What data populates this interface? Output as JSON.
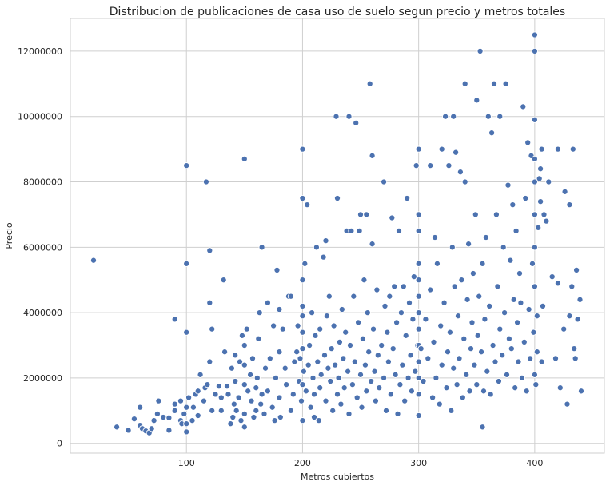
{
  "chart_data": {
    "type": "scatter",
    "title": "Distribucion de publicaciones de casa uso de suelo segun precio y metros totales",
    "xlabel": "Metros cubiertos",
    "ylabel": "Precio",
    "xlim": [
      0,
      460
    ],
    "ylim": [
      -300000,
      13000000
    ],
    "xticks": [
      100,
      200,
      300,
      400
    ],
    "yticks": [
      0,
      2000000,
      4000000,
      6000000,
      8000000,
      10000000,
      12000000
    ],
    "grid": true,
    "legend": "none",
    "marker_color": "#4c72b0",
    "points": [
      [
        20,
        5600000
      ],
      [
        40,
        500000
      ],
      [
        50,
        400000
      ],
      [
        55,
        750000
      ],
      [
        60,
        1100000
      ],
      [
        60,
        550000
      ],
      [
        62,
        450000
      ],
      [
        65,
        380000
      ],
      [
        68,
        320000
      ],
      [
        70,
        450000
      ],
      [
        72,
        700000
      ],
      [
        75,
        900000
      ],
      [
        76,
        1300000
      ],
      [
        80,
        800000
      ],
      [
        85,
        780000
      ],
      [
        85,
        400000
      ],
      [
        90,
        1000000
      ],
      [
        90,
        1200000
      ],
      [
        90,
        3800000
      ],
      [
        95,
        700000
      ],
      [
        95,
        1300000
      ],
      [
        96,
        600000
      ],
      [
        98,
        900000
      ],
      [
        100,
        350000
      ],
      [
        100,
        600000
      ],
      [
        100,
        1100000
      ],
      [
        100,
        3400000
      ],
      [
        100,
        5500000
      ],
      [
        100,
        8500000
      ],
      [
        102,
        1400000
      ],
      [
        105,
        700000
      ],
      [
        106,
        1100000
      ],
      [
        108,
        1500000
      ],
      [
        110,
        1600000
      ],
      [
        110,
        850000
      ],
      [
        112,
        2100000
      ],
      [
        115,
        1300000
      ],
      [
        116,
        1700000
      ],
      [
        117,
        8000000
      ],
      [
        118,
        1800000
      ],
      [
        120,
        2500000
      ],
      [
        120,
        4300000
      ],
      [
        120,
        5900000
      ],
      [
        122,
        3500000
      ],
      [
        122,
        1000000
      ],
      [
        125,
        1500000
      ],
      [
        128,
        1750000
      ],
      [
        130,
        1400000
      ],
      [
        130,
        1000000
      ],
      [
        132,
        5000000
      ],
      [
        133,
        2800000
      ],
      [
        135,
        1750000
      ],
      [
        136,
        1500000
      ],
      [
        138,
        600000
      ],
      [
        139,
        2300000
      ],
      [
        140,
        800000
      ],
      [
        141,
        1200000
      ],
      [
        142,
        1900000
      ],
      [
        142,
        2700000
      ],
      [
        143,
        1000000
      ],
      [
        145,
        1400000
      ],
      [
        146,
        2500000
      ],
      [
        147,
        700000
      ],
      [
        148,
        3300000
      ],
      [
        150,
        500000
      ],
      [
        150,
        900000
      ],
      [
        150,
        1800000
      ],
      [
        150,
        2400000
      ],
      [
        150,
        3000000
      ],
      [
        150,
        8700000
      ],
      [
        152,
        3500000
      ],
      [
        153,
        1600000
      ],
      [
        155,
        2100000
      ],
      [
        156,
        1300000
      ],
      [
        157,
        2600000
      ],
      [
        158,
        800000
      ],
      [
        160,
        1000000
      ],
      [
        160,
        1700000
      ],
      [
        161,
        2000000
      ],
      [
        162,
        3200000
      ],
      [
        163,
        4000000
      ],
      [
        164,
        1200000
      ],
      [
        165,
        6000000
      ],
      [
        165,
        1500000
      ],
      [
        167,
        900000
      ],
      [
        168,
        2300000
      ],
      [
        170,
        1600000
      ],
      [
        170,
        4300000
      ],
      [
        172,
        2600000
      ],
      [
        174,
        1100000
      ],
      [
        175,
        3600000
      ],
      [
        176,
        700000
      ],
      [
        177,
        2000000
      ],
      [
        178,
        5300000
      ],
      [
        180,
        1400000
      ],
      [
        180,
        2800000
      ],
      [
        180,
        4100000
      ],
      [
        181,
        800000
      ],
      [
        183,
        3500000
      ],
      [
        185,
        2300000
      ],
      [
        186,
        1800000
      ],
      [
        188,
        4500000
      ],
      [
        190,
        1000000
      ],
      [
        190,
        4500000
      ],
      [
        192,
        1500000
      ],
      [
        193,
        2500000
      ],
      [
        195,
        2800000
      ],
      [
        196,
        3600000
      ],
      [
        197,
        1900000
      ],
      [
        198,
        2600000
      ],
      [
        199,
        1300000
      ],
      [
        200,
        700000
      ],
      [
        200,
        1800000
      ],
      [
        200,
        2900000
      ],
      [
        200,
        3400000
      ],
      [
        200,
        3900000
      ],
      [
        200,
        4200000
      ],
      [
        200,
        5000000
      ],
      [
        200,
        7500000
      ],
      [
        200,
        9000000
      ],
      [
        201,
        2200000
      ],
      [
        202,
        5500000
      ],
      [
        203,
        1600000
      ],
      [
        204,
        7300000
      ],
      [
        205,
        2400000
      ],
      [
        206,
        3000000
      ],
      [
        207,
        1100000
      ],
      [
        208,
        4000000
      ],
      [
        209,
        2000000
      ],
      [
        210,
        800000
      ],
      [
        210,
        1500000
      ],
      [
        211,
        3300000
      ],
      [
        212,
        6000000
      ],
      [
        213,
        2500000
      ],
      [
        214,
        700000
      ],
      [
        215,
        1700000
      ],
      [
        215,
        3500000
      ],
      [
        216,
        2100000
      ],
      [
        218,
        5700000
      ],
      [
        219,
        2700000
      ],
      [
        220,
        1300000
      ],
      [
        220,
        6200000
      ],
      [
        221,
        3900000
      ],
      [
        222,
        2300000
      ],
      [
        223,
        4500000
      ],
      [
        224,
        1900000
      ],
      [
        225,
        2900000
      ],
      [
        226,
        1000000
      ],
      [
        227,
        3600000
      ],
      [
        228,
        2400000
      ],
      [
        229,
        10000000
      ],
      [
        230,
        1500000
      ],
      [
        230,
        7500000
      ],
      [
        231,
        2000000
      ],
      [
        232,
        3100000
      ],
      [
        233,
        1200000
      ],
      [
        234,
        4100000
      ],
      [
        235,
        2600000
      ],
      [
        236,
        1700000
      ],
      [
        237,
        3400000
      ],
      [
        238,
        6500000
      ],
      [
        239,
        2200000
      ],
      [
        240,
        900000
      ],
      [
        240,
        10000000
      ],
      [
        241,
        3000000
      ],
      [
        242,
        6500000
      ],
      [
        243,
        1800000
      ],
      [
        244,
        4500000
      ],
      [
        245,
        2500000
      ],
      [
        246,
        9800000
      ],
      [
        247,
        1400000
      ],
      [
        248,
        3700000
      ],
      [
        249,
        6500000
      ],
      [
        250,
        2100000
      ],
      [
        250,
        7000000
      ],
      [
        251,
        1100000
      ],
      [
        252,
        3200000
      ],
      [
        253,
        5000000
      ],
      [
        254,
        2400000
      ],
      [
        255,
        1600000
      ],
      [
        255,
        7000000
      ],
      [
        256,
        4000000
      ],
      [
        257,
        2800000
      ],
      [
        258,
        11000000
      ],
      [
        259,
        1900000
      ],
      [
        260,
        6100000
      ],
      [
        260,
        8800000
      ],
      [
        261,
        3500000
      ],
      [
        262,
        2200000
      ],
      [
        263,
        1300000
      ],
      [
        264,
        4700000
      ],
      [
        265,
        2700000
      ],
      [
        266,
        1700000
      ],
      [
        268,
        3000000
      ],
      [
        270,
        2000000
      ],
      [
        270,
        8000000
      ],
      [
        271,
        4200000
      ],
      [
        272,
        1000000
      ],
      [
        273,
        3400000
      ],
      [
        274,
        2500000
      ],
      [
        275,
        4500000
      ],
      [
        276,
        1500000
      ],
      [
        277,
        6900000
      ],
      [
        278,
        2900000
      ],
      [
        279,
        4800000
      ],
      [
        280,
        2100000
      ],
      [
        281,
        3700000
      ],
      [
        282,
        900000
      ],
      [
        283,
        6500000
      ],
      [
        284,
        1800000
      ],
      [
        285,
        4000000
      ],
      [
        286,
        2400000
      ],
      [
        287,
        4800000
      ],
      [
        288,
        1300000
      ],
      [
        289,
        3300000
      ],
      [
        290,
        7500000
      ],
      [
        291,
        2000000
      ],
      [
        292,
        4300000
      ],
      [
        293,
        2700000
      ],
      [
        294,
        1600000
      ],
      [
        295,
        3800000
      ],
      [
        296,
        5100000
      ],
      [
        297,
        2200000
      ],
      [
        298,
        8500000
      ],
      [
        299,
        3000000
      ],
      [
        300,
        850000
      ],
      [
        300,
        1500000
      ],
      [
        300,
        2000000
      ],
      [
        300,
        2500000
      ],
      [
        300,
        3000000
      ],
      [
        300,
        3500000
      ],
      [
        300,
        4000000
      ],
      [
        300,
        4500000
      ],
      [
        300,
        5000000
      ],
      [
        300,
        5500000
      ],
      [
        300,
        6500000
      ],
      [
        300,
        7000000
      ],
      [
        300,
        9000000
      ],
      [
        302,
        2900000
      ],
      [
        304,
        1900000
      ],
      [
        306,
        3800000
      ],
      [
        308,
        2600000
      ],
      [
        310,
        4700000
      ],
      [
        310,
        8500000
      ],
      [
        312,
        1400000
      ],
      [
        313,
        3100000
      ],
      [
        314,
        6300000
      ],
      [
        315,
        2000000
      ],
      [
        316,
        5500000
      ],
      [
        318,
        1200000
      ],
      [
        319,
        3600000
      ],
      [
        320,
        2400000
      ],
      [
        320,
        9000000
      ],
      [
        322,
        4300000
      ],
      [
        323,
        10000000
      ],
      [
        324,
        1700000
      ],
      [
        325,
        2800000
      ],
      [
        326,
        8500000
      ],
      [
        327,
        3400000
      ],
      [
        328,
        1000000
      ],
      [
        329,
        6000000
      ],
      [
        330,
        2300000
      ],
      [
        330,
        10000000
      ],
      [
        331,
        4800000
      ],
      [
        332,
        8900000
      ],
      [
        333,
        1800000
      ],
      [
        334,
        3900000
      ],
      [
        335,
        2600000
      ],
      [
        336,
        8300000
      ],
      [
        337,
        5000000
      ],
      [
        338,
        1400000
      ],
      [
        339,
        3200000
      ],
      [
        340,
        8000000
      ],
      [
        340,
        11000000
      ],
      [
        341,
        2100000
      ],
      [
        342,
        4400000
      ],
      [
        343,
        6100000
      ],
      [
        344,
        1600000
      ],
      [
        345,
        2900000
      ],
      [
        346,
        3700000
      ],
      [
        347,
        5200000
      ],
      [
        348,
        2400000
      ],
      [
        349,
        7000000
      ],
      [
        350,
        1800000
      ],
      [
        350,
        10500000
      ],
      [
        351,
        3300000
      ],
      [
        352,
        4500000
      ],
      [
        353,
        12000000
      ],
      [
        354,
        2800000
      ],
      [
        355,
        500000
      ],
      [
        355,
        5500000
      ],
      [
        356,
        1600000
      ],
      [
        357,
        3800000
      ],
      [
        358,
        6300000
      ],
      [
        359,
        2200000
      ],
      [
        360,
        10000000
      ],
      [
        361,
        4200000
      ],
      [
        362,
        1500000
      ],
      [
        363,
        9500000
      ],
      [
        364,
        3000000
      ],
      [
        365,
        11000000
      ],
      [
        366,
        2500000
      ],
      [
        367,
        7000000
      ],
      [
        368,
        4800000
      ],
      [
        369,
        1900000
      ],
      [
        370,
        3500000
      ],
      [
        370,
        10000000
      ],
      [
        372,
        2700000
      ],
      [
        373,
        6000000
      ],
      [
        374,
        4000000
      ],
      [
        375,
        11000000
      ],
      [
        376,
        2100000
      ],
      [
        377,
        7900000
      ],
      [
        378,
        3200000
      ],
      [
        379,
        5600000
      ],
      [
        380,
        2900000
      ],
      [
        381,
        7300000
      ],
      [
        382,
        4400000
      ],
      [
        383,
        1700000
      ],
      [
        384,
        6500000
      ],
      [
        385,
        3700000
      ],
      [
        386,
        2500000
      ],
      [
        387,
        5200000
      ],
      [
        388,
        4300000
      ],
      [
        389,
        2000000
      ],
      [
        390,
        10300000
      ],
      [
        391,
        3100000
      ],
      [
        392,
        7500000
      ],
      [
        393,
        1600000
      ],
      [
        394,
        9200000
      ],
      [
        395,
        4100000
      ],
      [
        396,
        2600000
      ],
      [
        397,
        8800000
      ],
      [
        398,
        5500000
      ],
      [
        399,
        3400000
      ],
      [
        400,
        2100000
      ],
      [
        400,
        4800000
      ],
      [
        400,
        6000000
      ],
      [
        400,
        7000000
      ],
      [
        400,
        8000000
      ],
      [
        400,
        8700000
      ],
      [
        400,
        9900000
      ],
      [
        400,
        12000000
      ],
      [
        400,
        12500000
      ],
      [
        401,
        1800000
      ],
      [
        402,
        2800000
      ],
      [
        402,
        3900000
      ],
      [
        403,
        6600000
      ],
      [
        404,
        8100000
      ],
      [
        405,
        7400000
      ],
      [
        405,
        8400000
      ],
      [
        406,
        2500000
      ],
      [
        406,
        9000000
      ],
      [
        407,
        4200000
      ],
      [
        408,
        7000000
      ],
      [
        410,
        6800000
      ],
      [
        412,
        8000000
      ],
      [
        415,
        5100000
      ],
      [
        418,
        2600000
      ],
      [
        420,
        9000000
      ],
      [
        420,
        4900000
      ],
      [
        422,
        1700000
      ],
      [
        425,
        3500000
      ],
      [
        426,
        7700000
      ],
      [
        428,
        1200000
      ],
      [
        430,
        3900000
      ],
      [
        430,
        7300000
      ],
      [
        432,
        4800000
      ],
      [
        433,
        9000000
      ],
      [
        434,
        2900000
      ],
      [
        435,
        2600000
      ],
      [
        436,
        5300000
      ],
      [
        437,
        3800000
      ],
      [
        439,
        4400000
      ],
      [
        440,
        1600000
      ]
    ]
  }
}
